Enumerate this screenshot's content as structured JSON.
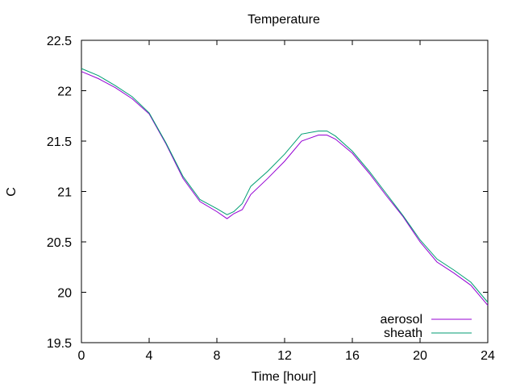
{
  "chart_data": {
    "type": "line",
    "title": "Temperature",
    "xlabel": "Time [hour]",
    "ylabel": "C",
    "xlim": [
      0,
      24
    ],
    "ylim": [
      19.5,
      22.5
    ],
    "xticks": [
      0,
      4,
      8,
      12,
      16,
      20,
      24
    ],
    "xtick_labels": [
      "0",
      "4",
      "8",
      "12",
      "16",
      "20",
      "24"
    ],
    "yticks": [
      19.5,
      20,
      20.5,
      21,
      21.5,
      22,
      22.5
    ],
    "ytick_labels": [
      "19.5",
      "20",
      "20.5",
      "21",
      "21.5",
      "22",
      "22.5"
    ],
    "grid": false,
    "legend_position": "bottom-right",
    "series": [
      {
        "name": "aerosol",
        "color": "#9400d3",
        "x": [
          0,
          1,
          2,
          3,
          4,
          5,
          6,
          7,
          8,
          8.6,
          9,
          9.5,
          10,
          11,
          12,
          13,
          14,
          14.5,
          15,
          16,
          17,
          18,
          19,
          20,
          21,
          22,
          23,
          24
        ],
        "y": [
          22.19,
          22.12,
          22.03,
          21.92,
          21.77,
          21.47,
          21.13,
          20.9,
          20.8,
          20.73,
          20.78,
          20.82,
          20.97,
          21.13,
          21.3,
          21.5,
          21.56,
          21.56,
          21.52,
          21.38,
          21.18,
          20.96,
          20.75,
          20.5,
          20.3,
          20.19,
          20.07,
          19.87
        ]
      },
      {
        "name": "sheath",
        "color": "#009e73",
        "x": [
          0,
          1,
          2,
          3,
          4,
          5,
          6,
          7,
          8,
          8.6,
          9,
          9.5,
          10,
          11,
          12,
          13,
          14,
          14.5,
          15,
          16,
          17,
          18,
          19,
          20,
          21,
          22,
          23,
          24
        ],
        "y": [
          22.22,
          22.15,
          22.05,
          21.94,
          21.78,
          21.48,
          21.15,
          20.92,
          20.83,
          20.77,
          20.8,
          20.88,
          21.05,
          21.2,
          21.37,
          21.57,
          21.6,
          21.6,
          21.55,
          21.4,
          21.2,
          20.98,
          20.76,
          20.52,
          20.33,
          20.22,
          20.1,
          19.9
        ]
      }
    ]
  }
}
